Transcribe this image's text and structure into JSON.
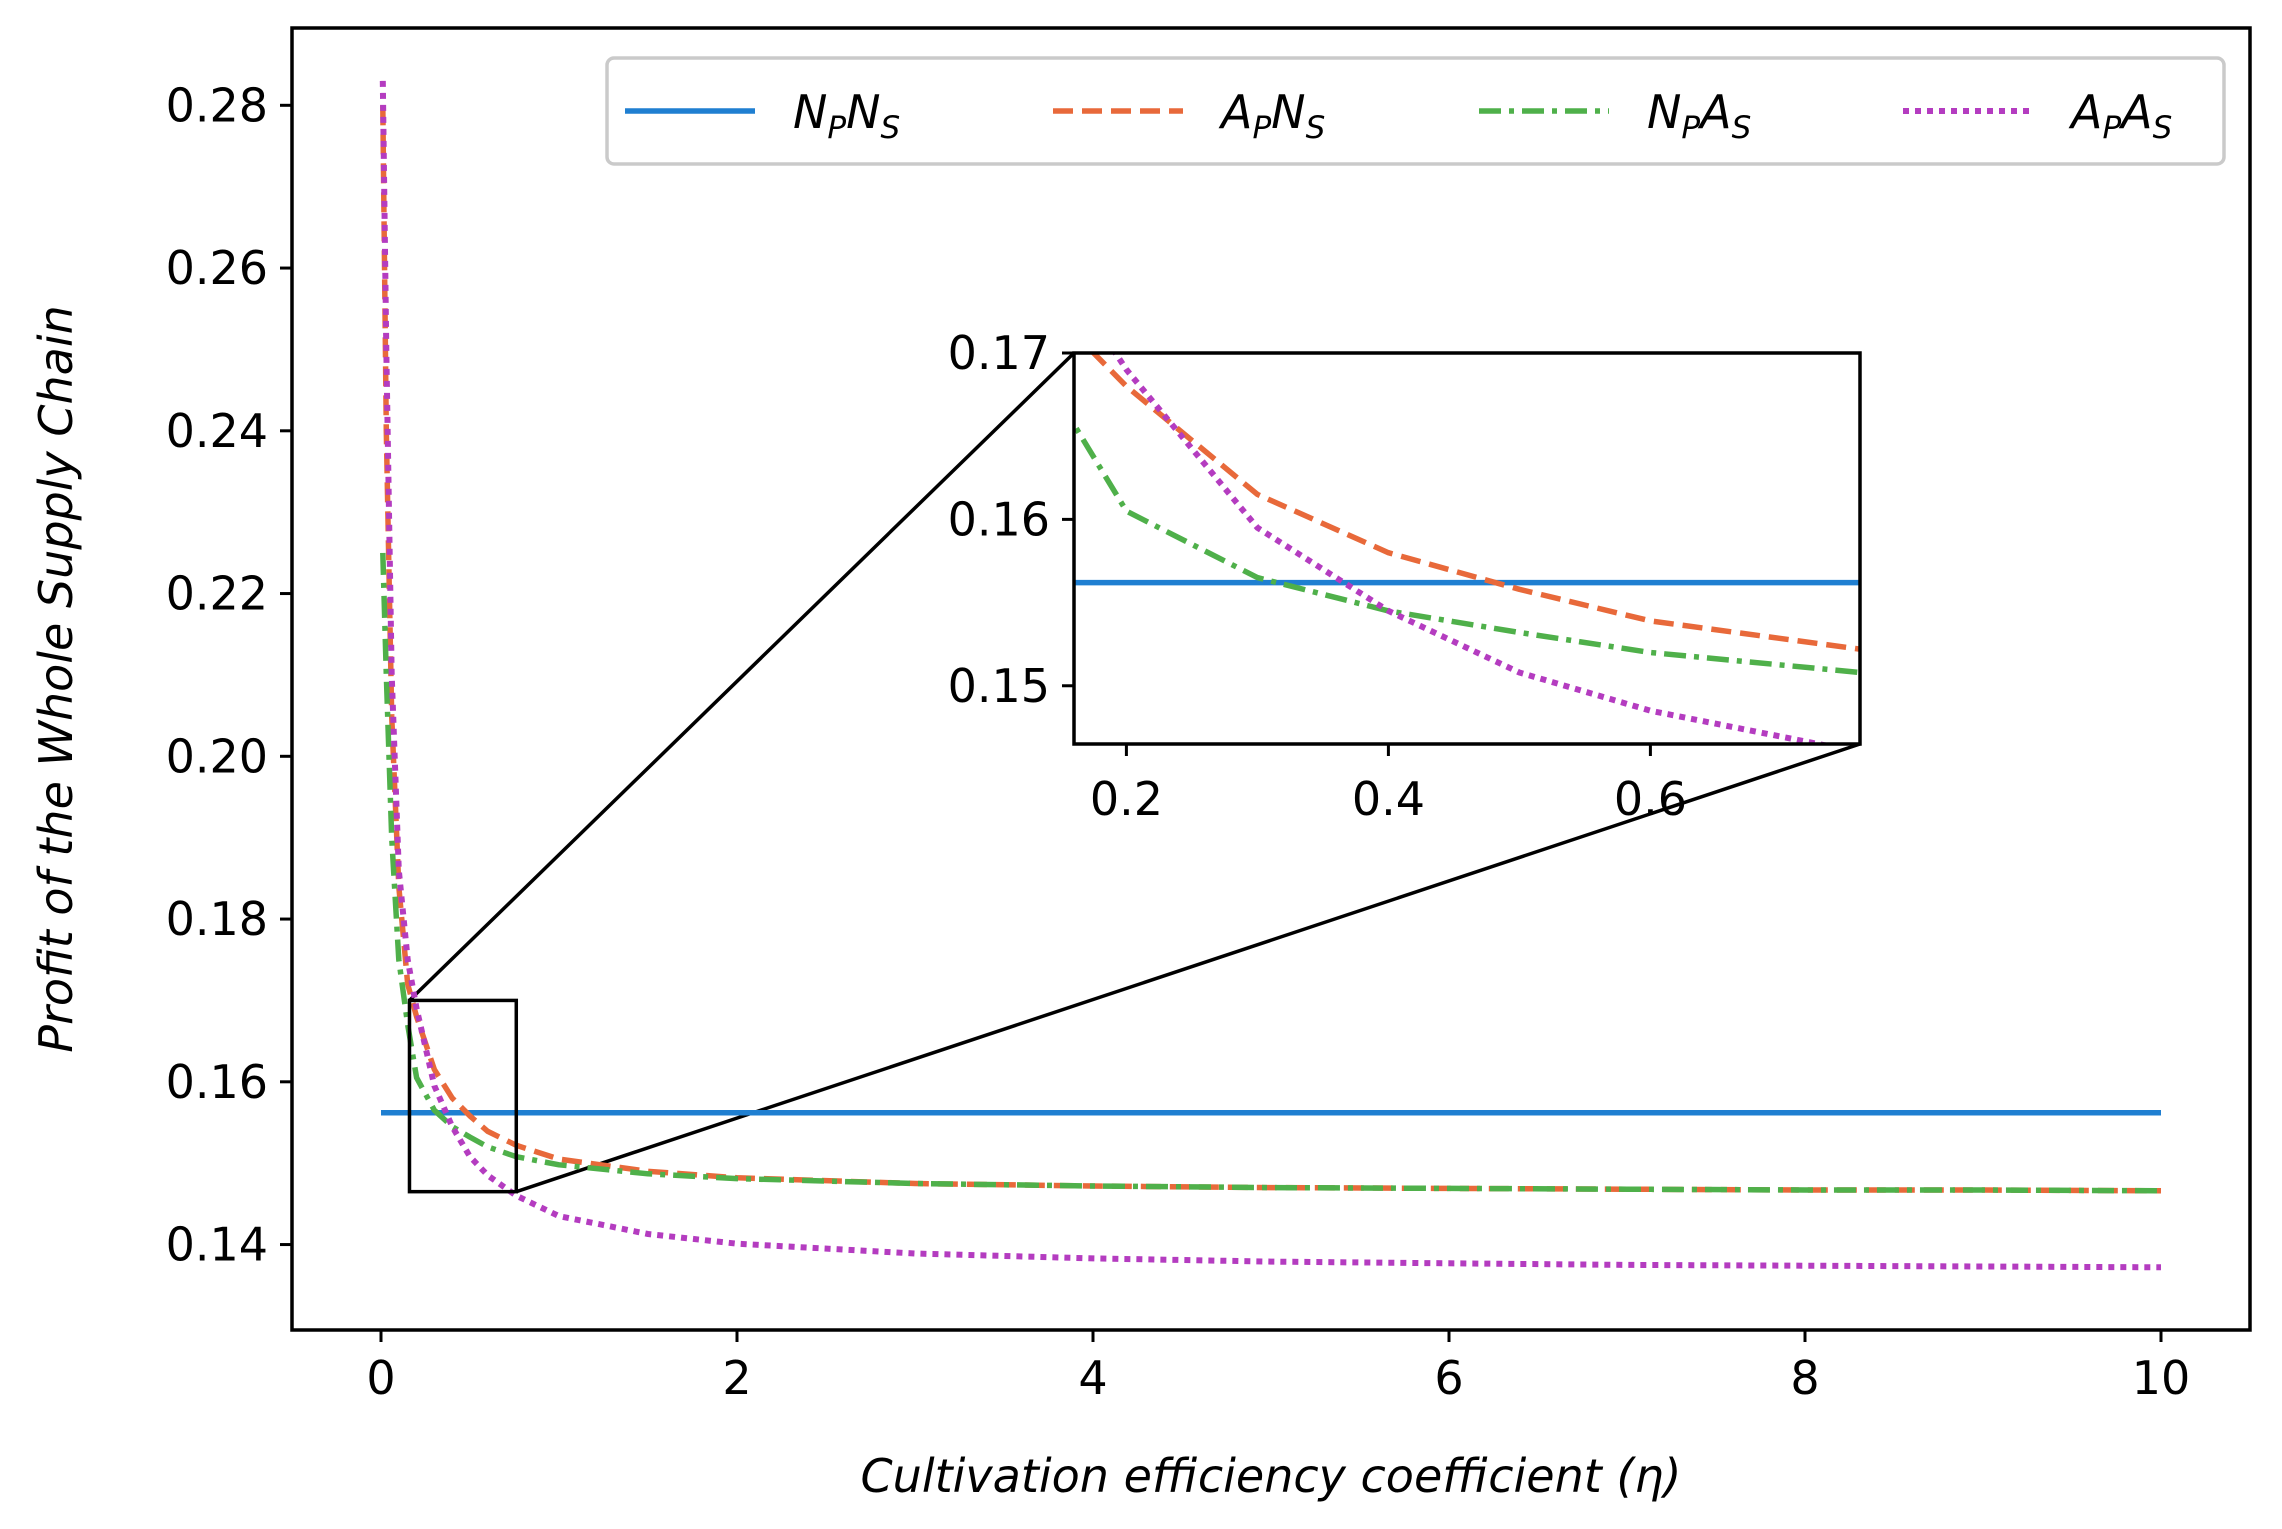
{
  "chart_data": {
    "type": "line",
    "title": "",
    "xlabel": "Cultivation efficiency coefficient (η)",
    "ylabel": "Profit of the Whole Supply Chain",
    "xlim": [
      -0.5,
      10.5
    ],
    "ylim": [
      0.1295,
      0.2895
    ],
    "xticks": [
      0,
      2,
      4,
      6,
      8,
      10
    ],
    "xtick_labels": [
      "0",
      "2",
      "4",
      "6",
      "8",
      "10"
    ],
    "yticks": [
      0.14,
      0.16,
      0.18,
      0.2,
      0.22,
      0.24,
      0.26,
      0.28
    ],
    "ytick_labels": [
      "0.14",
      "0.16",
      "0.18",
      "0.20",
      "0.22",
      "0.24",
      "0.26",
      "0.28"
    ],
    "grid": false,
    "legend_position": "top-right",
    "series": [
      {
        "name": "NPNS",
        "label_main": [
          "N",
          "N"
        ],
        "label_sub": [
          "P",
          "S"
        ],
        "style": "solid",
        "color": "#1f7fd1",
        "x": [
          0,
          10
        ],
        "y": [
          0.1562,
          0.1562
        ]
      },
      {
        "name": "APNS",
        "label_main": [
          "A",
          "N"
        ],
        "label_sub": [
          "P",
          "S"
        ],
        "style": "dashed",
        "color": "#e8693a",
        "x": [
          0.01,
          0.03,
          0.06,
          0.1,
          0.15,
          0.2,
          0.3,
          0.4,
          0.5,
          0.6,
          0.76,
          1.0,
          1.5,
          2.0,
          3.0,
          4.0,
          5.0,
          6.0,
          7.0,
          8.0,
          9.0,
          10.0
        ],
        "y": [
          0.28,
          0.24,
          0.205,
          0.184,
          0.172,
          0.168,
          0.1615,
          0.158,
          0.1558,
          0.1539,
          0.1522,
          0.1505,
          0.149,
          0.1482,
          0.1475,
          0.1472,
          0.147,
          0.1469,
          0.1468,
          0.1467,
          0.1467,
          0.1466
        ]
      },
      {
        "name": "NPAS",
        "label_main": [
          "N",
          "A"
        ],
        "label_sub": [
          "P",
          "S"
        ],
        "style": "dashdot",
        "color": "#4fb04a",
        "x": [
          0.01,
          0.03,
          0.06,
          0.1,
          0.15,
          0.2,
          0.3,
          0.4,
          0.5,
          0.6,
          0.76,
          1.0,
          1.5,
          2.0,
          3.0,
          4.0,
          5.0,
          6.0,
          7.0,
          8.0,
          9.0,
          10.0
        ],
        "y": [
          0.225,
          0.21,
          0.19,
          0.175,
          0.167,
          0.1605,
          0.1565,
          0.1545,
          0.1532,
          0.152,
          0.1508,
          0.1498,
          0.1487,
          0.1481,
          0.1475,
          0.1472,
          0.147,
          0.1469,
          0.1468,
          0.1467,
          0.1467,
          0.1466
        ]
      },
      {
        "name": "APAS",
        "label_main": [
          "A",
          "A"
        ],
        "label_sub": [
          "P",
          "S"
        ],
        "style": "dotted",
        "color": "#b43cc0",
        "x": [
          0.01,
          0.03,
          0.06,
          0.1,
          0.15,
          0.2,
          0.3,
          0.4,
          0.5,
          0.6,
          0.76,
          1.0,
          1.5,
          2.0,
          3.0,
          4.0,
          5.0,
          6.0,
          7.0,
          8.0,
          9.0,
          10.0
        ],
        "y": [
          0.283,
          0.25,
          0.21,
          0.186,
          0.175,
          0.169,
          0.1595,
          0.1545,
          0.1508,
          0.1485,
          0.146,
          0.1435,
          0.1413,
          0.1401,
          0.1389,
          0.1383,
          0.1379,
          0.1377,
          0.1375,
          0.1374,
          0.1373,
          0.1372
        ]
      }
    ],
    "inset": {
      "xlim": [
        0.16,
        0.76
      ],
      "ylim": [
        0.1465,
        0.17
      ],
      "xticks": [
        0.2,
        0.4,
        0.6
      ],
      "xtick_labels": [
        "0.2",
        "0.4",
        "0.6"
      ],
      "yticks": [
        0.15,
        0.16,
        0.17
      ],
      "ytick_labels": [
        "0.15",
        "0.16",
        "0.17"
      ]
    }
  }
}
